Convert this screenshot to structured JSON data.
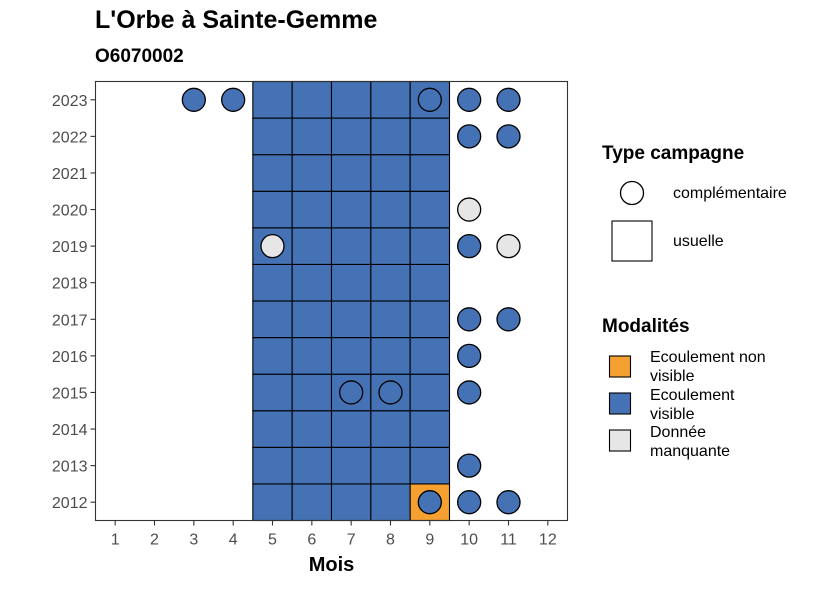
{
  "chart_data": {
    "type": "heatmap",
    "title": "L'Orbe à Sainte-Gemme",
    "subtitle": "O6070002",
    "xlabel": "Mois",
    "ylabel": "",
    "x_ticks": [
      1,
      2,
      3,
      4,
      5,
      6,
      7,
      8,
      9,
      10,
      11,
      12
    ],
    "y_ticks": [
      2012,
      2013,
      2014,
      2015,
      2016,
      2017,
      2018,
      2019,
      2020,
      2021,
      2022,
      2023
    ],
    "xlim": [
      0.5,
      12.5
    ],
    "ylim": [
      2011.5,
      2023.5
    ],
    "grid": false,
    "modalites": [
      {
        "key": "non_visible",
        "label": "Ecoulement non visible",
        "color": "#F5A030"
      },
      {
        "key": "visible",
        "label": "Ecoulement visible",
        "color": "#4572B4"
      },
      {
        "key": "manquante",
        "label": "Donnée manquante",
        "color": "#E6E6E6"
      }
    ],
    "usuelle": [
      {
        "month": 5,
        "year": 2012,
        "mod": "visible"
      },
      {
        "month": 6,
        "year": 2012,
        "mod": "visible"
      },
      {
        "month": 7,
        "year": 2012,
        "mod": "visible"
      },
      {
        "month": 8,
        "year": 2012,
        "mod": "visible"
      },
      {
        "month": 9,
        "year": 2012,
        "mod": "non_visible"
      },
      {
        "month": 5,
        "year": 2013,
        "mod": "visible"
      },
      {
        "month": 6,
        "year": 2013,
        "mod": "visible"
      },
      {
        "month": 7,
        "year": 2013,
        "mod": "visible"
      },
      {
        "month": 8,
        "year": 2013,
        "mod": "visible"
      },
      {
        "month": 9,
        "year": 2013,
        "mod": "visible"
      },
      {
        "month": 5,
        "year": 2014,
        "mod": "visible"
      },
      {
        "month": 6,
        "year": 2014,
        "mod": "visible"
      },
      {
        "month": 7,
        "year": 2014,
        "mod": "visible"
      },
      {
        "month": 8,
        "year": 2014,
        "mod": "visible"
      },
      {
        "month": 9,
        "year": 2014,
        "mod": "visible"
      },
      {
        "month": 5,
        "year": 2015,
        "mod": "visible"
      },
      {
        "month": 6,
        "year": 2015,
        "mod": "visible"
      },
      {
        "month": 7,
        "year": 2015,
        "mod": "visible"
      },
      {
        "month": 8,
        "year": 2015,
        "mod": "visible"
      },
      {
        "month": 9,
        "year": 2015,
        "mod": "visible"
      },
      {
        "month": 5,
        "year": 2016,
        "mod": "visible"
      },
      {
        "month": 6,
        "year": 2016,
        "mod": "visible"
      },
      {
        "month": 7,
        "year": 2016,
        "mod": "visible"
      },
      {
        "month": 8,
        "year": 2016,
        "mod": "visible"
      },
      {
        "month": 9,
        "year": 2016,
        "mod": "visible"
      },
      {
        "month": 5,
        "year": 2017,
        "mod": "visible"
      },
      {
        "month": 6,
        "year": 2017,
        "mod": "visible"
      },
      {
        "month": 7,
        "year": 2017,
        "mod": "visible"
      },
      {
        "month": 8,
        "year": 2017,
        "mod": "visible"
      },
      {
        "month": 9,
        "year": 2017,
        "mod": "visible"
      },
      {
        "month": 5,
        "year": 2018,
        "mod": "visible"
      },
      {
        "month": 6,
        "year": 2018,
        "mod": "visible"
      },
      {
        "month": 7,
        "year": 2018,
        "mod": "visible"
      },
      {
        "month": 8,
        "year": 2018,
        "mod": "visible"
      },
      {
        "month": 9,
        "year": 2018,
        "mod": "visible"
      },
      {
        "month": 5,
        "year": 2019,
        "mod": "visible"
      },
      {
        "month": 6,
        "year": 2019,
        "mod": "visible"
      },
      {
        "month": 7,
        "year": 2019,
        "mod": "visible"
      },
      {
        "month": 8,
        "year": 2019,
        "mod": "visible"
      },
      {
        "month": 9,
        "year": 2019,
        "mod": "visible"
      },
      {
        "month": 5,
        "year": 2020,
        "mod": "visible"
      },
      {
        "month": 6,
        "year": 2020,
        "mod": "visible"
      },
      {
        "month": 7,
        "year": 2020,
        "mod": "visible"
      },
      {
        "month": 8,
        "year": 2020,
        "mod": "visible"
      },
      {
        "month": 9,
        "year": 2020,
        "mod": "visible"
      },
      {
        "month": 5,
        "year": 2021,
        "mod": "visible"
      },
      {
        "month": 6,
        "year": 2021,
        "mod": "visible"
      },
      {
        "month": 7,
        "year": 2021,
        "mod": "visible"
      },
      {
        "month": 8,
        "year": 2021,
        "mod": "visible"
      },
      {
        "month": 9,
        "year": 2021,
        "mod": "visible"
      },
      {
        "month": 5,
        "year": 2022,
        "mod": "visible"
      },
      {
        "month": 6,
        "year": 2022,
        "mod": "visible"
      },
      {
        "month": 7,
        "year": 2022,
        "mod": "visible"
      },
      {
        "month": 8,
        "year": 2022,
        "mod": "visible"
      },
      {
        "month": 9,
        "year": 2022,
        "mod": "visible"
      },
      {
        "month": 5,
        "year": 2023,
        "mod": "visible"
      },
      {
        "month": 6,
        "year": 2023,
        "mod": "visible"
      },
      {
        "month": 7,
        "year": 2023,
        "mod": "visible"
      },
      {
        "month": 8,
        "year": 2023,
        "mod": "visible"
      },
      {
        "month": 9,
        "year": 2023,
        "mod": "visible"
      }
    ],
    "complementaire": [
      {
        "month": 3,
        "year": 2023,
        "mod": "visible"
      },
      {
        "month": 4,
        "year": 2023,
        "mod": "visible"
      },
      {
        "month": 9,
        "year": 2023,
        "mod": "visible"
      },
      {
        "month": 10,
        "year": 2023,
        "mod": "visible"
      },
      {
        "month": 11,
        "year": 2023,
        "mod": "visible"
      },
      {
        "month": 10,
        "year": 2022,
        "mod": "visible"
      },
      {
        "month": 11,
        "year": 2022,
        "mod": "visible"
      },
      {
        "month": 10,
        "year": 2020,
        "mod": "manquante"
      },
      {
        "month": 5,
        "year": 2019,
        "mod": "manquante"
      },
      {
        "month": 10,
        "year": 2019,
        "mod": "visible"
      },
      {
        "month": 11,
        "year": 2019,
        "mod": "manquante"
      },
      {
        "month": 10,
        "year": 2017,
        "mod": "visible"
      },
      {
        "month": 11,
        "year": 2017,
        "mod": "visible"
      },
      {
        "month": 10,
        "year": 2016,
        "mod": "visible"
      },
      {
        "month": 7,
        "year": 2015,
        "mod": "visible"
      },
      {
        "month": 8,
        "year": 2015,
        "mod": "visible"
      },
      {
        "month": 10,
        "year": 2015,
        "mod": "visible"
      },
      {
        "month": 10,
        "year": 2013,
        "mod": "visible"
      },
      {
        "month": 9,
        "year": 2012,
        "mod": "visible"
      },
      {
        "month": 10,
        "year": 2012,
        "mod": "visible"
      },
      {
        "month": 11,
        "year": 2012,
        "mod": "visible"
      }
    ],
    "legend": {
      "type_title": "Type campagne",
      "type_items": [
        "complémentaire",
        "usuelle"
      ],
      "mod_title": "Modalités",
      "mod_items": [
        "Ecoulement non visible",
        "Ecoulement visible",
        "Donnée manquante"
      ]
    }
  }
}
